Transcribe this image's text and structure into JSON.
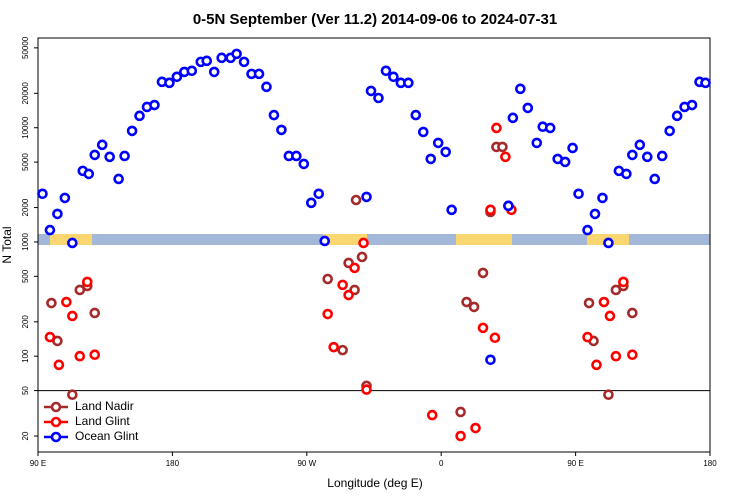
{
  "chart_data": {
    "type": "scatter",
    "title": "0-5N September (Ver 11.2)   2014-09-06 to 2024-07-31",
    "xlabel": "Longitude (deg E)",
    "ylabel": "N Total",
    "xlim": [
      90,
      540
    ],
    "xticks": [
      {
        "value": 90,
        "label": "90 E"
      },
      180,
      {
        "value": 270,
        "label": "90 W"
      },
      {
        "value": 360,
        "label": "0"
      },
      {
        "value": 450,
        "label": "90 E"
      },
      {
        "value": 540,
        "label": "180"
      }
    ],
    "ylim": [
      14.5,
      61000
    ],
    "yscale": "log",
    "yticks": [
      20,
      50,
      100,
      200,
      500,
      1000,
      2000,
      5000,
      10000,
      20000,
      50000
    ],
    "hline": 50,
    "legend": "lower left",
    "series": [
      {
        "name": "Land Nadir",
        "color": "#a52a2a",
        "x": [
          99,
          103,
          113,
          118,
          123,
          128,
          284,
          294,
          298,
          302,
          307,
          303,
          310,
          373,
          377,
          382,
          388,
          393,
          397,
          401,
          405,
          459,
          462,
          472,
          477,
          482,
          488
        ],
        "values": [
          292,
          136,
          46,
          380,
          412,
          239,
          474,
          113,
          655,
          380,
          739,
          2330,
          55,
          32.5,
          298,
          270,
          536,
          1830,
          6790,
          6790,
          2070,
          292,
          136,
          46,
          380,
          412,
          239
        ]
      },
      {
        "name": "Land Glint",
        "color": "#ff0000",
        "x": [
          98,
          104,
          109,
          113,
          118,
          123,
          128,
          284,
          288,
          294,
          298,
          302,
          308,
          310,
          354,
          373,
          383,
          388,
          393,
          396,
          397,
          403,
          407,
          458,
          464,
          469,
          473,
          477,
          482,
          488
        ],
        "values": [
          147,
          84,
          298,
          225,
          100,
          447,
          103,
          234,
          120,
          421,
          343,
          593,
          980,
          51,
          30.5,
          20,
          23.5,
          177,
          1910,
          145,
          9950,
          5560,
          1910,
          147,
          84,
          298,
          225,
          100,
          447,
          103
        ]
      },
      {
        "name": "Ocean Glint",
        "color": "#0000ff",
        "x": [
          93,
          98,
          103,
          108,
          113,
          120,
          124,
          128,
          133,
          138,
          144,
          148,
          153,
          158,
          163,
          168,
          173,
          178,
          183,
          188,
          193,
          199,
          203,
          208,
          213,
          219,
          223,
          228,
          233,
          238,
          243,
          248,
          253,
          258,
          263,
          268,
          273,
          278,
          282,
          310,
          313,
          318,
          323,
          328,
          333,
          338,
          343,
          348,
          353,
          358,
          363,
          367,
          393,
          405,
          408,
          413,
          418,
          424,
          428,
          433,
          438,
          443,
          448,
          452,
          458,
          463,
          468,
          472,
          479,
          484,
          488,
          493,
          498,
          503,
          508,
          513,
          518,
          523,
          528,
          533,
          537
        ],
        "values": [
          2640,
          1270,
          1760,
          2430,
          980,
          4190,
          3940,
          5780,
          7080,
          5560,
          3560,
          5660,
          9380,
          12700,
          15200,
          15800,
          25200,
          24700,
          27900,
          30800,
          31500,
          37700,
          38500,
          30800,
          40900,
          40900,
          44300,
          37700,
          29600,
          29600,
          22800,
          12900,
          9570,
          5660,
          5660,
          4820,
          2200,
          2640,
          1020,
          2480,
          21000,
          18200,
          31500,
          27900,
          24700,
          24700,
          12900,
          9180,
          5330,
          7360,
          6140,
          1910,
          93,
          2070,
          12200,
          21900,
          14900,
          7360,
          10200,
          9950,
          5330,
          5020,
          6650,
          2640,
          1270,
          1760,
          2430,
          980,
          4190,
          3940,
          5780,
          7080,
          5560,
          3560,
          5660,
          9380,
          12700,
          15200,
          15800,
          25200,
          24700
        ]
      }
    ]
  }
}
